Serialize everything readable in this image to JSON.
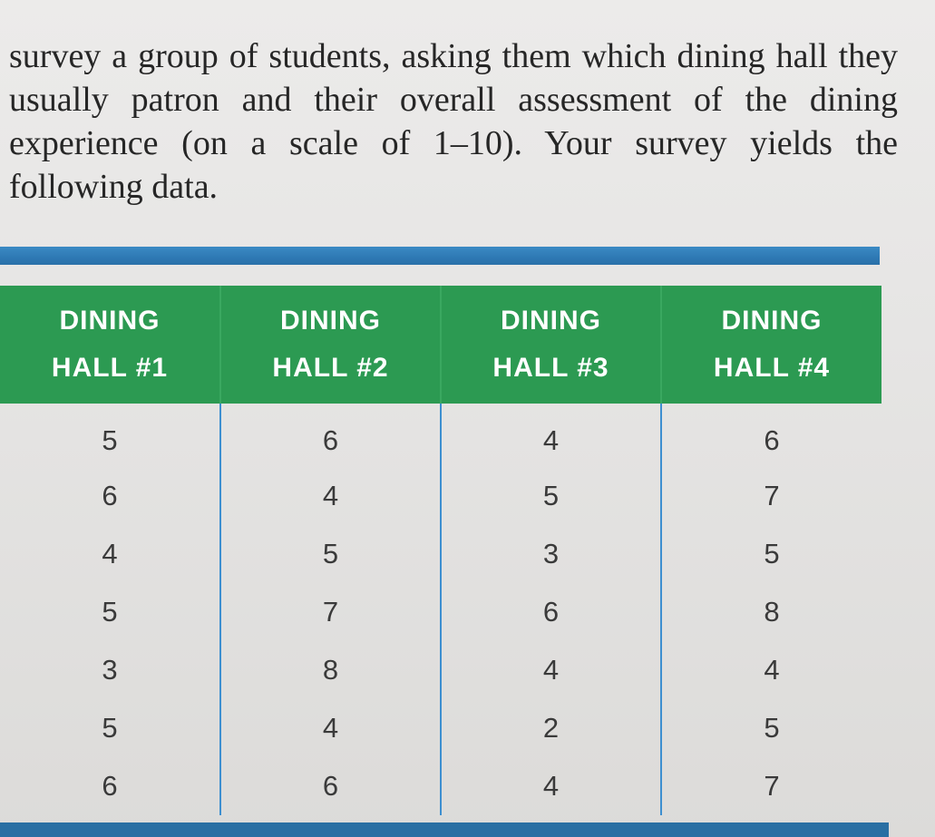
{
  "intro_text": "survey a group of students, asking them which dining hall they usually patron and their overall assessment of the dining experience (on a scale of 1–10). Your survey yields the following data.",
  "table": {
    "headers": [
      {
        "line1": "DINING",
        "line2": "HALL #1"
      },
      {
        "line1": "DINING",
        "line2": "HALL #2"
      },
      {
        "line1": "DINING",
        "line2": "HALL #3"
      },
      {
        "line1": "DINING",
        "line2": "HALL #4"
      }
    ],
    "rows": [
      [
        "5",
        "6",
        "4",
        "6"
      ],
      [
        "6",
        "4",
        "5",
        "7"
      ],
      [
        "4",
        "5",
        "3",
        "5"
      ],
      [
        "5",
        "7",
        "6",
        "8"
      ],
      [
        "3",
        "8",
        "4",
        "4"
      ],
      [
        "5",
        "4",
        "2",
        "5"
      ],
      [
        "6",
        "6",
        "4",
        "7"
      ]
    ]
  },
  "colors": {
    "header_bg": "#2c9a52",
    "rule": "#2e79b4",
    "column_divider": "#3d8fd0"
  }
}
